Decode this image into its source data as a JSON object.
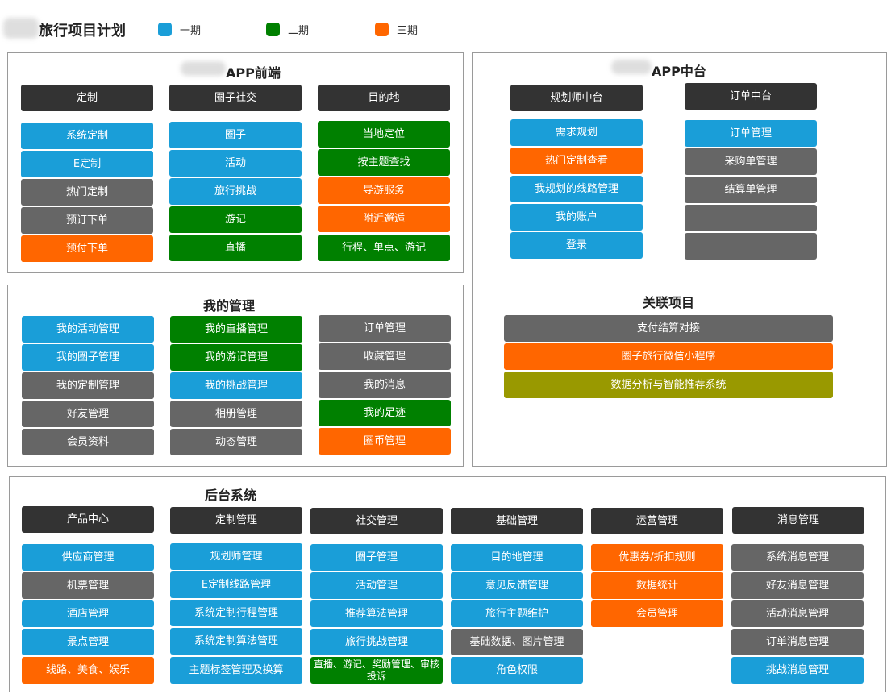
{
  "page_title": "旅行项目计划",
  "legend": [
    {
      "label": "一期",
      "color": "#1a9ed8"
    },
    {
      "label": "二期",
      "color": "#008000"
    },
    {
      "label": "三期",
      "color": "#ff6600"
    }
  ],
  "app_front": {
    "title": "APP前端",
    "columns": [
      {
        "header": "定制",
        "items": [
          {
            "label": "系统定制",
            "phase": "blue"
          },
          {
            "label": "E定制",
            "phase": "blue"
          },
          {
            "label": "热门定制",
            "phase": "gray"
          },
          {
            "label": "预订下单",
            "phase": "gray"
          },
          {
            "label": "预付下单",
            "phase": "orange"
          }
        ]
      },
      {
        "header": "圈子社交",
        "items": [
          {
            "label": "圈子",
            "phase": "blue"
          },
          {
            "label": "活动",
            "phase": "blue"
          },
          {
            "label": "旅行挑战",
            "phase": "blue"
          },
          {
            "label": "游记",
            "phase": "green"
          },
          {
            "label": "直播",
            "phase": "green"
          }
        ]
      },
      {
        "header": "目的地",
        "items": [
          {
            "label": "当地定位",
            "phase": "green"
          },
          {
            "label": "按主题查找",
            "phase": "green"
          },
          {
            "label": "导游服务",
            "phase": "orange"
          },
          {
            "label": "附近邂逅",
            "phase": "orange"
          },
          {
            "label": "行程、单点、游记",
            "phase": "green"
          }
        ]
      }
    ]
  },
  "my_management": {
    "title": "我的管理",
    "columns": [
      {
        "items": [
          {
            "label": "我的活动管理",
            "phase": "blue"
          },
          {
            "label": "我的圈子管理",
            "phase": "blue"
          },
          {
            "label": "我的定制管理",
            "phase": "gray"
          },
          {
            "label": "好友管理",
            "phase": "gray"
          },
          {
            "label": "会员资料",
            "phase": "gray"
          }
        ]
      },
      {
        "items": [
          {
            "label": "我的直播管理",
            "phase": "green"
          },
          {
            "label": "我的游记管理",
            "phase": "green"
          },
          {
            "label": "我的挑战管理",
            "phase": "blue"
          },
          {
            "label": "相册管理",
            "phase": "gray"
          },
          {
            "label": "动态管理",
            "phase": "gray"
          }
        ]
      },
      {
        "items": [
          {
            "label": "订单管理",
            "phase": "gray"
          },
          {
            "label": "收藏管理",
            "phase": "gray"
          },
          {
            "label": "我的消息",
            "phase": "gray"
          },
          {
            "label": "我的足迹",
            "phase": "green"
          },
          {
            "label": "圈币管理",
            "phase": "orange"
          }
        ]
      }
    ]
  },
  "app_middle": {
    "title": "APP中台",
    "columns": [
      {
        "header": "规划师中台",
        "items": [
          {
            "label": "需求规划",
            "phase": "blue"
          },
          {
            "label": "热门定制查看",
            "phase": "orange"
          },
          {
            "label": "我规划的线路管理",
            "phase": "blue"
          },
          {
            "label": "我的账户",
            "phase": "blue"
          },
          {
            "label": "登录",
            "phase": "blue"
          }
        ]
      },
      {
        "header": "订单中台",
        "items": [
          {
            "label": "订单管理",
            "phase": "blue"
          },
          {
            "label": "采购单管理",
            "phase": "gray"
          },
          {
            "label": "结算单管理",
            "phase": "gray"
          },
          {
            "label": "",
            "phase": "gray"
          },
          {
            "label": "",
            "phase": "gray"
          }
        ]
      }
    ],
    "related_title": "关联项目",
    "related": [
      {
        "label": "支付结算对接",
        "phase": "gray"
      },
      {
        "label": "圈子旅行微信小程序",
        "phase": "orange"
      },
      {
        "label": "数据分析与智能推荐系统",
        "phase": "olive"
      }
    ]
  },
  "backend": {
    "title": "后台系统",
    "columns": [
      {
        "header": "产品中心",
        "items": [
          {
            "label": "供应商管理",
            "phase": "blue"
          },
          {
            "label": "机票管理",
            "phase": "gray"
          },
          {
            "label": "酒店管理",
            "phase": "blue"
          },
          {
            "label": "景点管理",
            "phase": "blue"
          },
          {
            "label": "线路、美食、娱乐",
            "phase": "orange"
          }
        ]
      },
      {
        "header": "定制管理",
        "items": [
          {
            "label": "规划师管理",
            "phase": "blue"
          },
          {
            "label": "E定制线路管理",
            "phase": "blue"
          },
          {
            "label": "系统定制行程管理",
            "phase": "blue"
          },
          {
            "label": "系统定制算法管理",
            "phase": "blue"
          },
          {
            "label": "主题标签管理及换算",
            "phase": "blue"
          }
        ]
      },
      {
        "header": "社交管理",
        "items": [
          {
            "label": "圈子管理",
            "phase": "blue"
          },
          {
            "label": "活动管理",
            "phase": "blue"
          },
          {
            "label": "推荐算法管理",
            "phase": "blue"
          },
          {
            "label": "旅行挑战管理",
            "phase": "blue"
          },
          {
            "label": "直播、游记、奖励管理、审核投诉",
            "phase": "green"
          }
        ]
      },
      {
        "header": "基础管理",
        "items": [
          {
            "label": "目的地管理",
            "phase": "blue"
          },
          {
            "label": "意见反馈管理",
            "phase": "blue"
          },
          {
            "label": "旅行主题维护",
            "phase": "blue"
          },
          {
            "label": "基础数据、图片管理",
            "phase": "gray"
          },
          {
            "label": "角色权限",
            "phase": "blue"
          }
        ]
      },
      {
        "header": "运营管理",
        "items": [
          {
            "label": "优惠券/折扣规则",
            "phase": "orange"
          },
          {
            "label": "数据统计",
            "phase": "orange"
          },
          {
            "label": "会员管理",
            "phase": "orange"
          }
        ]
      },
      {
        "header": "消息管理",
        "items": [
          {
            "label": "系统消息管理",
            "phase": "gray"
          },
          {
            "label": "好友消息管理",
            "phase": "gray"
          },
          {
            "label": "活动消息管理",
            "phase": "gray"
          },
          {
            "label": "订单消息管理",
            "phase": "gray"
          },
          {
            "label": "挑战消息管理",
            "phase": "blue"
          }
        ]
      }
    ]
  }
}
